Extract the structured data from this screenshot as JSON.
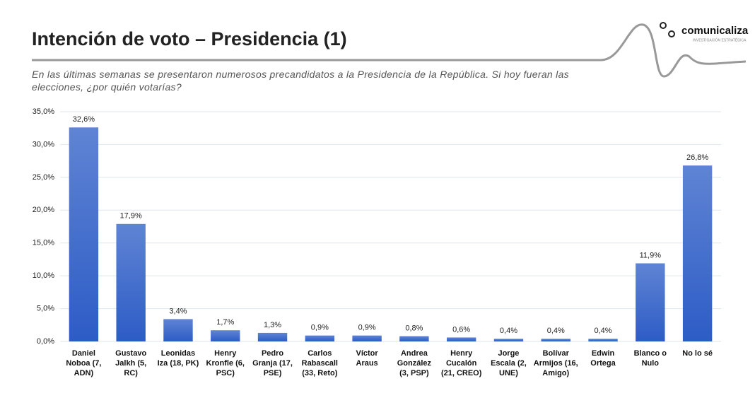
{
  "chart_data": {
    "type": "bar",
    "title": "Intención de voto – Presidencia (1)",
    "subtitle": "En las últimas semanas se presentaron numerosos precandidatos a la Presidencia de la República. Si hoy fueran las elecciones, ¿por quién votarías?",
    "logo": "comunicaliza",
    "logo_tagline": "INVESTIGACIÓN ESTRATÉGICA",
    "categories": [
      "Daniel Noboa (7, ADN)",
      "Gustavo Jalkh (5, RC)",
      "Leonidas Iza (18, PK)",
      "Henry Kronfle (6, PSC)",
      "Pedro Granja (17, PSE)",
      "Carlos Rabascall (33, Reto)",
      "Víctor Araus",
      "Andrea González (3, PSP)",
      "Henry Cucalón (21, CREO)",
      "Jorge Escala (2, UNE)",
      "Bolívar Armijos (16, Amigo)",
      "Edwin Ortega",
      "Blanco o Nulo",
      "No lo sé"
    ],
    "values": [
      32.6,
      17.9,
      3.4,
      1.7,
      1.3,
      0.9,
      0.9,
      0.8,
      0.6,
      0.4,
      0.4,
      0.4,
      11.9,
      26.8
    ],
    "value_labels": [
      "32,6%",
      "17,9%",
      "3,4%",
      "1,7%",
      "1,3%",
      "0,9%",
      "0,9%",
      "0,8%",
      "0,6%",
      "0,4%",
      "0,4%",
      "0,4%",
      "11,9%",
      "26,8%"
    ],
    "color": "#4472c4",
    "ylim": [
      0,
      35
    ],
    "yticks": [
      {
        "value": 0,
        "label": "0,0%"
      },
      {
        "value": 5,
        "label": "5,0%"
      },
      {
        "value": 10,
        "label": "10,0%"
      },
      {
        "value": 15,
        "label": "15,0%"
      },
      {
        "value": 20,
        "label": "20,0%"
      },
      {
        "value": 25,
        "label": "25,0%"
      },
      {
        "value": 30,
        "label": "30,0%"
      },
      {
        "value": 35,
        "label": "35,0%"
      }
    ],
    "grid": true
  }
}
